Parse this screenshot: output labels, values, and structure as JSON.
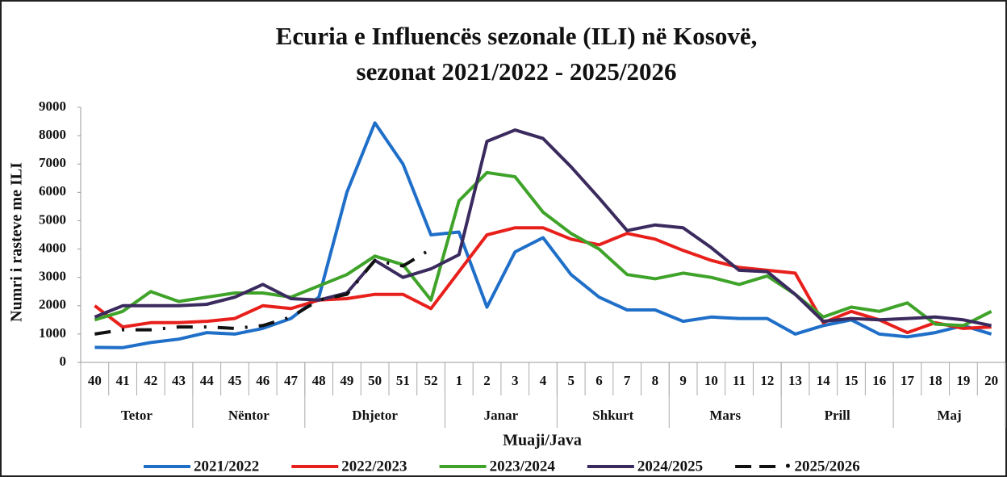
{
  "chart_data": {
    "type": "line",
    "title": [
      "Ecuria e Influencës sezonale (ILI) në Kosovë,",
      "sezonat 2021/2022 - 2025/2026"
    ],
    "y_label": "Numri i rasteve me ILI",
    "x_label": "Muaji/Java",
    "categories": [
      "40",
      "41",
      "42",
      "43",
      "44",
      "45",
      "46",
      "47",
      "48",
      "49",
      "50",
      "51",
      "52",
      "1",
      "2",
      "3",
      "4",
      "5",
      "6",
      "7",
      "8",
      "9",
      "10",
      "11",
      "12",
      "13",
      "14",
      "15",
      "16",
      "17",
      "18",
      "19",
      "20"
    ],
    "groups": [
      {
        "label": "Tetor",
        "weeks": 4
      },
      {
        "label": "Nëntor",
        "weeks": 4
      },
      {
        "label": "Dhjetor",
        "weeks": 5
      },
      {
        "label": "Janar",
        "weeks": 4
      },
      {
        "label": "Shkurt",
        "weeks": 4
      },
      {
        "label": "Mars",
        "weeks": 4
      },
      {
        "label": "Prill",
        "weeks": 4
      },
      {
        "label": "Maj",
        "weeks": 4
      }
    ],
    "ylim": [
      0,
      9000
    ],
    "yticks": [
      0,
      1000,
      2000,
      3000,
      4000,
      5000,
      6000,
      7000,
      8000,
      9000
    ],
    "series": [
      {
        "name": "2021/2022",
        "color": "#1f6fc9",
        "values": [
          530,
          520,
          700,
          820,
          1050,
          1000,
          1200,
          1550,
          2300,
          6000,
          8450,
          7000,
          4500,
          4600,
          1950,
          3900,
          4400,
          3100,
          2300,
          1850,
          1850,
          1450,
          1600,
          1550,
          1550,
          1000,
          1300,
          1500,
          1000,
          900,
          1050,
          1300,
          1000
        ]
      },
      {
        "name": "2022/2023",
        "color": "#e8201c",
        "values": [
          2000,
          1250,
          1400,
          1400,
          1450,
          1550,
          2000,
          1900,
          2200,
          2250,
          2400,
          2400,
          1900,
          3200,
          4500,
          4750,
          4750,
          4350,
          4150,
          4550,
          4350,
          3950,
          3600,
          3350,
          3250,
          3150,
          1400,
          1800,
          1500,
          1050,
          1400,
          1200,
          1250
        ]
      },
      {
        "name": "2023/2024",
        "color": "#3fa32a",
        "values": [
          1500,
          1800,
          2500,
          2150,
          2300,
          2450,
          2450,
          2300,
          2700,
          3100,
          3750,
          3450,
          2200,
          5700,
          6700,
          6550,
          5300,
          4550,
          4000,
          3100,
          2950,
          3150,
          3000,
          2750,
          3050,
          2400,
          1600,
          1950,
          1800,
          2100,
          1350,
          1300,
          1800
        ]
      },
      {
        "name": "2024/2025",
        "color": "#3a2a5e",
        "values": [
          1600,
          2000,
          2000,
          2000,
          2050,
          2300,
          2750,
          2250,
          2200,
          2450,
          3600,
          3000,
          3300,
          3800,
          7800,
          8200,
          7900,
          6900,
          5800,
          4650,
          4850,
          4750,
          4050,
          3250,
          3200,
          2400,
          1450,
          1550,
          1500,
          1550,
          1600,
          1500,
          1300
        ]
      },
      {
        "name": "• 2025/2026",
        "color": "#111111",
        "dashed": true,
        "values": [
          1000,
          1150,
          1150,
          1250,
          1250,
          1200,
          1300,
          1600,
          2200,
          2400,
          3600,
          3400,
          4000,
          null,
          null,
          null,
          null,
          null,
          null,
          null,
          null,
          null,
          null,
          null,
          null,
          null,
          null,
          null,
          null,
          null,
          null,
          null,
          null
        ]
      }
    ]
  }
}
